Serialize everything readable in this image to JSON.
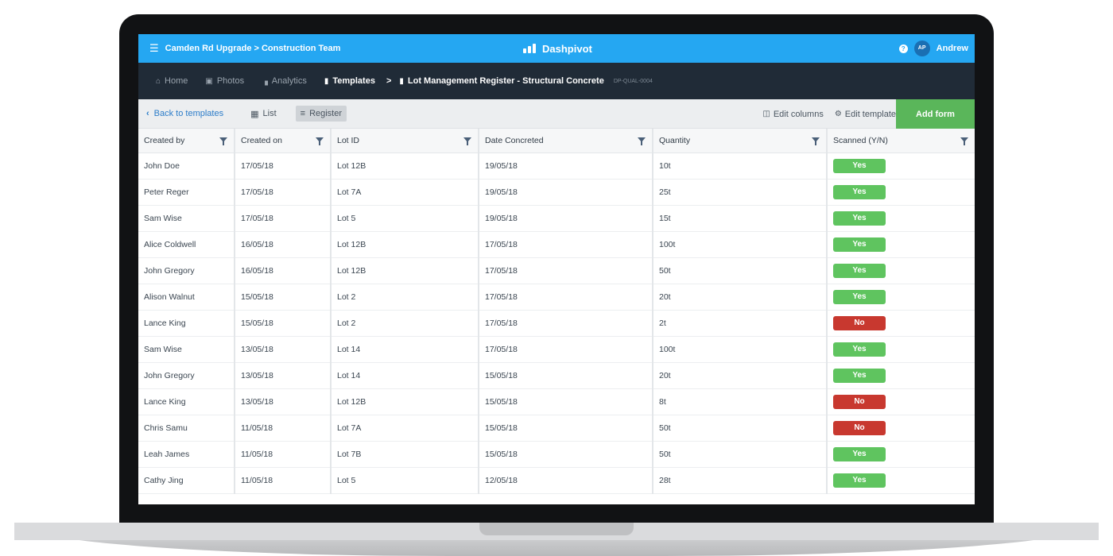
{
  "topbar": {
    "breadcrumb": "Camden Rd Upgrade > Construction Team",
    "logo": "Dashpivot",
    "user_initials": "AP",
    "user_name": "Andrew",
    "help_glyph": "?"
  },
  "nav": {
    "home": "Home",
    "photos": "Photos",
    "analytics": "Analytics",
    "templates": "Templates",
    "separator": ">",
    "current": "Lot Management Register - Structural Concrete",
    "code": "DP-QUAL-0004"
  },
  "toolbar": {
    "back": "Back to templates",
    "list": "List",
    "register": "Register",
    "edit_columns": "Edit columns",
    "edit_template": "Edit template",
    "add_form": "Add form"
  },
  "table": {
    "headers": [
      "Created by",
      "Created on",
      "Lot ID",
      "Date Concreted",
      "Quantity",
      "Scanned (Y/N)"
    ],
    "rows": [
      {
        "by": "John  Doe",
        "on": "17/05/18",
        "lot": "Lot 12B",
        "date": "19/05/18",
        "qty": "10t",
        "scanned": "Yes"
      },
      {
        "by": "Peter Reger",
        "on": "17/05/18",
        "lot": "Lot 7A",
        "date": "19/05/18",
        "qty": "25t",
        "scanned": "Yes"
      },
      {
        "by": "Sam Wise",
        "on": "17/05/18",
        "lot": "Lot 5",
        "date": "19/05/18",
        "qty": "15t",
        "scanned": "Yes"
      },
      {
        "by": "Alice Coldwell",
        "on": "16/05/18",
        "lot": "Lot 12B",
        "date": "17/05/18",
        "qty": "100t",
        "scanned": "Yes"
      },
      {
        "by": "John Gregory",
        "on": "16/05/18",
        "lot": "Lot 12B",
        "date": "17/05/18",
        "qty": "50t",
        "scanned": "Yes"
      },
      {
        "by": "Alison Walnut",
        "on": "15/05/18",
        "lot": "Lot 2",
        "date": "17/05/18",
        "qty": "20t",
        "scanned": "Yes"
      },
      {
        "by": "Lance King",
        "on": "15/05/18",
        "lot": "Lot 2",
        "date": "17/05/18",
        "qty": "2t",
        "scanned": "No"
      },
      {
        "by": "Sam Wise",
        "on": "13/05/18",
        "lot": "Lot 14",
        "date": "17/05/18",
        "qty": "100t",
        "scanned": "Yes"
      },
      {
        "by": "John Gregory",
        "on": "13/05/18",
        "lot": "Lot 14",
        "date": "15/05/18",
        "qty": "20t",
        "scanned": "Yes"
      },
      {
        "by": "Lance King",
        "on": "13/05/18",
        "lot": "Lot 12B",
        "date": "15/05/18",
        "qty": "8t",
        "scanned": "No"
      },
      {
        "by": "Chris Samu",
        "on": "11/05/18",
        "lot": "Lot 7A",
        "date": "15/05/18",
        "qty": "50t",
        "scanned": "No"
      },
      {
        "by": "Leah James",
        "on": "11/05/18",
        "lot": "Lot 7B",
        "date": "15/05/18",
        "qty": "50t",
        "scanned": "Yes"
      },
      {
        "by": "Cathy Jing",
        "on": "11/05/18",
        "lot": "Lot 5",
        "date": "12/05/18",
        "qty": "28t",
        "scanned": "Yes"
      }
    ]
  },
  "colors": {
    "brand_blue": "#25a7f2",
    "nav_dark": "#202b37",
    "add_green": "#5ab65a",
    "yes_green": "#5fc45f",
    "no_red": "#c8382f"
  }
}
